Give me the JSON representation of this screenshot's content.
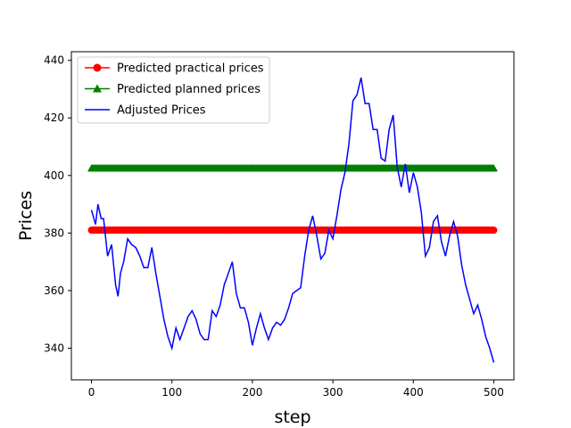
{
  "chart_data": {
    "type": "line",
    "title": "",
    "xlabel": "step",
    "ylabel": "Prices",
    "xlim": [
      -25,
      525
    ],
    "ylim": [
      329,
      443
    ],
    "xticks": [
      0,
      100,
      200,
      300,
      400,
      500
    ],
    "yticks": [
      340,
      360,
      380,
      400,
      420,
      440
    ],
    "grid": false,
    "legend_position": "top-left",
    "series": [
      {
        "name": "Predicted practical prices",
        "color": "#ff0000",
        "marker": "circle",
        "x": [
          0,
          500
        ],
        "y": [
          381,
          381
        ]
      },
      {
        "name": "Predicted planned prices",
        "color": "#008000",
        "marker": "triangle",
        "x": [
          0,
          500
        ],
        "y": [
          402.5,
          402.5
        ]
      },
      {
        "name": "Adjusted Prices",
        "color": "#0000ff",
        "marker": "none",
        "x": [
          0,
          5,
          8,
          12,
          15,
          20,
          25,
          30,
          33,
          36,
          40,
          45,
          50,
          55,
          60,
          65,
          70,
          75,
          80,
          85,
          90,
          95,
          100,
          105,
          110,
          115,
          120,
          125,
          130,
          135,
          140,
          145,
          150,
          155,
          160,
          165,
          170,
          175,
          180,
          185,
          190,
          195,
          200,
          205,
          210,
          215,
          220,
          225,
          230,
          235,
          240,
          245,
          250,
          255,
          260,
          265,
          270,
          275,
          280,
          285,
          290,
          295,
          300,
          305,
          310,
          315,
          320,
          325,
          330,
          335,
          340,
          345,
          350,
          355,
          360,
          365,
          370,
          375,
          380,
          385,
          390,
          395,
          400,
          405,
          410,
          415,
          420,
          425,
          430,
          435,
          440,
          445,
          450,
          455,
          460,
          465,
          470,
          475,
          480,
          485,
          490,
          495,
          500
        ],
        "y": [
          388,
          383,
          390,
          385,
          385,
          372,
          376,
          362,
          358,
          366,
          370,
          378,
          376,
          375,
          372,
          368,
          368,
          375,
          366,
          358,
          350,
          344,
          340,
          347,
          343,
          347,
          351,
          353,
          350,
          345,
          343,
          343,
          353,
          351,
          355,
          362,
          366,
          370,
          359,
          354,
          354,
          349,
          341,
          347,
          352,
          347,
          343,
          347,
          349,
          348,
          350,
          354,
          359,
          360,
          361,
          372,
          381,
          386,
          379,
          371,
          373,
          381,
          378,
          386,
          395,
          401,
          411,
          426,
          428,
          434,
          425,
          425,
          416,
          416,
          406,
          405,
          416,
          421,
          403,
          396,
          404,
          394,
          401,
          396,
          387,
          372,
          375,
          384,
          386,
          377,
          372,
          379,
          384,
          379,
          369,
          362,
          357,
          352,
          355,
          350,
          344,
          340,
          335
        ]
      }
    ]
  }
}
